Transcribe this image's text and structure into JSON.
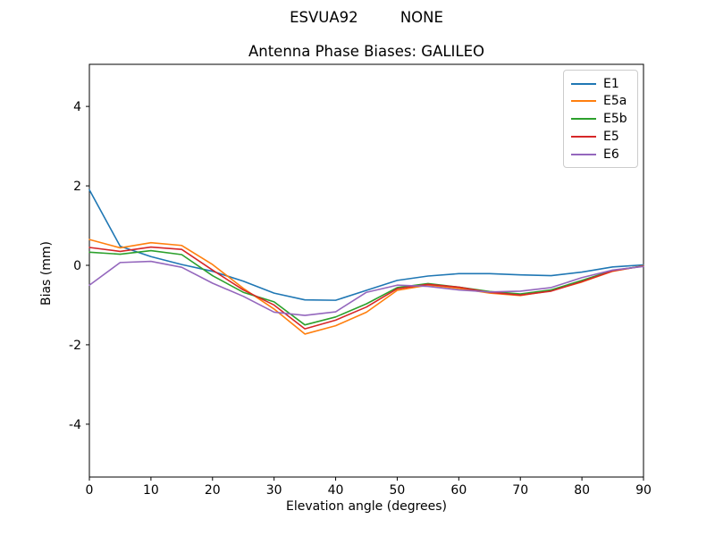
{
  "header": {
    "suptitle": "ESVUA92         NONE",
    "title": "Antenna Phase Biases: GALILEO"
  },
  "chart_data": {
    "type": "line",
    "suptitle": "ESVUA92         NONE",
    "title": "Antenna Phase Biases: GALILEO",
    "xlabel": "Elevation angle (degrees)",
    "ylabel": "Bias (mm)",
    "xlim": [
      0,
      90
    ],
    "ylim": [
      -5.33,
      5.06
    ],
    "xticks": [
      0,
      10,
      20,
      30,
      40,
      50,
      60,
      70,
      80,
      90
    ],
    "yticks": [
      -4,
      -2,
      0,
      2,
      4
    ],
    "grid": false,
    "legend_position": "upper right",
    "x": [
      0,
      5,
      10,
      15,
      20,
      25,
      30,
      35,
      40,
      45,
      50,
      55,
      60,
      65,
      70,
      75,
      80,
      85,
      90
    ],
    "series": [
      {
        "name": "E1",
        "color": "#1f77b4",
        "values": [
          1.9,
          0.48,
          0.22,
          0.02,
          -0.15,
          -0.4,
          -0.7,
          -0.87,
          -0.88,
          -0.63,
          -0.38,
          -0.27,
          -0.21,
          -0.21,
          -0.24,
          -0.26,
          -0.17,
          -0.04,
          0.01
        ]
      },
      {
        "name": "E5a",
        "color": "#ff7f0e",
        "values": [
          0.65,
          0.44,
          0.57,
          0.5,
          0.02,
          -0.58,
          -1.1,
          -1.73,
          -1.52,
          -1.18,
          -0.63,
          -0.5,
          -0.58,
          -0.7,
          -0.76,
          -0.64,
          -0.42,
          -0.15,
          -0.01
        ]
      },
      {
        "name": "E5b",
        "color": "#2ca02c",
        "values": [
          0.33,
          0.28,
          0.37,
          0.27,
          -0.26,
          -0.68,
          -0.92,
          -1.5,
          -1.3,
          -0.97,
          -0.56,
          -0.46,
          -0.55,
          -0.66,
          -0.72,
          -0.62,
          -0.38,
          -0.13,
          -0.02
        ]
      },
      {
        "name": "E5",
        "color": "#d62728",
        "values": [
          0.45,
          0.35,
          0.46,
          0.4,
          -0.12,
          -0.62,
          -1.0,
          -1.6,
          -1.38,
          -1.05,
          -0.59,
          -0.48,
          -0.55,
          -0.68,
          -0.75,
          -0.65,
          -0.41,
          -0.14,
          -0.02
        ]
      },
      {
        "name": "E6",
        "color": "#9467bd",
        "values": [
          -0.5,
          0.07,
          0.1,
          -0.05,
          -0.45,
          -0.78,
          -1.18,
          -1.26,
          -1.17,
          -0.68,
          -0.5,
          -0.53,
          -0.62,
          -0.67,
          -0.65,
          -0.56,
          -0.31,
          -0.12,
          -0.03
        ]
      }
    ]
  }
}
